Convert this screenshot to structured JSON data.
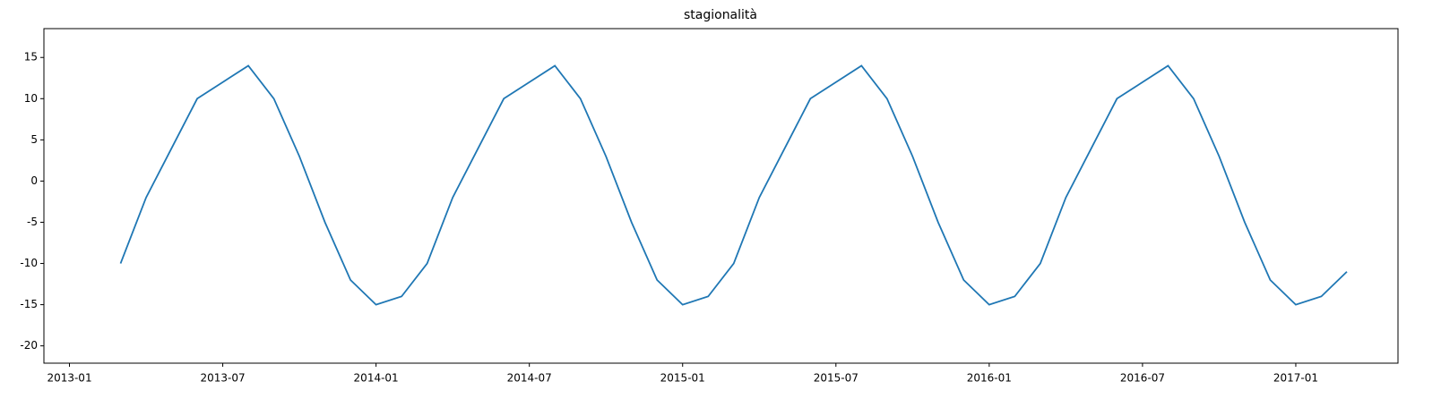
{
  "chart_data": {
    "type": "line",
    "title": "stagionalità",
    "x": [
      "2013-03",
      "2013-04",
      "2013-05",
      "2013-06",
      "2013-07",
      "2013-08",
      "2013-09",
      "2013-10",
      "2013-11",
      "2013-12",
      "2014-01",
      "2014-02",
      "2014-03",
      "2014-04",
      "2014-05",
      "2014-06",
      "2014-07",
      "2014-08",
      "2014-09",
      "2014-10",
      "2014-11",
      "2014-12",
      "2015-01",
      "2015-02",
      "2015-03",
      "2015-04",
      "2015-05",
      "2015-06",
      "2015-07",
      "2015-08",
      "2015-09",
      "2015-10",
      "2015-11",
      "2015-12",
      "2016-01",
      "2016-02",
      "2016-03",
      "2016-04",
      "2016-05",
      "2016-06",
      "2016-07",
      "2016-08",
      "2016-09",
      "2016-10",
      "2016-11",
      "2016-12",
      "2017-01",
      "2017-02",
      "2017-03"
    ],
    "series": [
      {
        "color": "#1f77b4",
        "values": [
          -10,
          -2,
          4,
          10,
          12,
          14,
          10,
          3,
          -5,
          -12,
          -15,
          -14,
          -10,
          -2,
          4,
          10,
          12,
          14,
          10,
          3,
          -5,
          -12,
          -15,
          -14,
          -10,
          -2,
          4,
          10,
          12,
          14,
          10,
          3,
          -5,
          -12,
          -15,
          -14,
          -10,
          -2,
          4,
          10,
          12,
          14,
          10,
          3,
          -5,
          -12,
          -15,
          -14,
          -11
        ]
      }
    ],
    "xlim": [
      "2012-12",
      "2017-05"
    ],
    "xticks": [
      "2013-01",
      "2013-07",
      "2014-01",
      "2014-07",
      "2015-01",
      "2015-07",
      "2016-01",
      "2016-07",
      "2017-01"
    ],
    "ylim": [
      -22.1,
      18.5
    ],
    "yticks": [
      -20,
      -15,
      -10,
      -5,
      0,
      5,
      10,
      15
    ]
  }
}
